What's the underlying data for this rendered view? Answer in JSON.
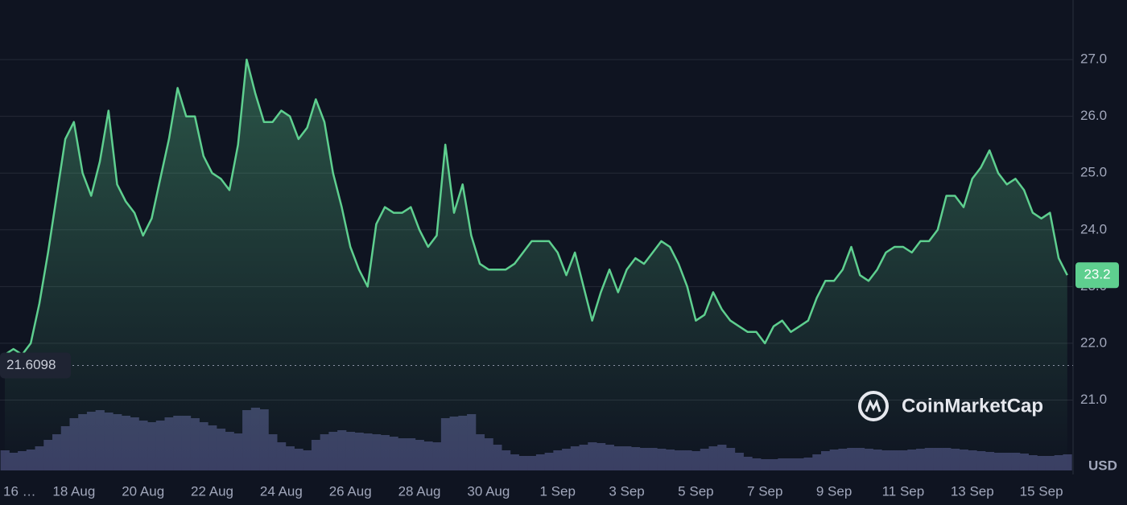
{
  "chart_data": {
    "type": "line",
    "color": "#5ecf8f",
    "volume_color": "#3a3f63",
    "categories": [
      "16 …",
      null,
      null,
      null,
      null,
      null,
      null,
      null,
      "18 Aug",
      null,
      null,
      null,
      null,
      null,
      null,
      null,
      "20 Aug",
      null,
      null,
      null,
      null,
      null,
      null,
      null,
      "22 Aug",
      null,
      null,
      null,
      null,
      null,
      null,
      null,
      "24 Aug",
      null,
      null,
      null,
      null,
      null,
      null,
      null,
      "26 Aug",
      null,
      null,
      null,
      null,
      null,
      null,
      null,
      "28 Aug",
      null,
      null,
      null,
      null,
      null,
      null,
      null,
      "30 Aug",
      null,
      null,
      null,
      null,
      null,
      null,
      null,
      "1 Sep",
      null,
      null,
      null,
      null,
      null,
      null,
      null,
      "3 Sep",
      null,
      null,
      null,
      null,
      null,
      null,
      null,
      "5 Sep",
      null,
      null,
      null,
      null,
      null,
      null,
      null,
      "7 Sep",
      null,
      null,
      null,
      null,
      null,
      null,
      null,
      "9 Sep",
      null,
      null,
      null,
      null,
      null,
      null,
      null,
      "11 Sep",
      null,
      null,
      null,
      null,
      null,
      null,
      null,
      "13 Sep",
      null,
      null,
      null,
      null,
      null,
      null,
      null,
      "15 Sep",
      null,
      null,
      null
    ],
    "values": [
      21.8,
      21.9,
      21.8,
      22.0,
      22.7,
      23.6,
      24.6,
      25.6,
      25.9,
      25.0,
      24.6,
      25.2,
      26.1,
      24.8,
      24.5,
      24.3,
      23.9,
      24.2,
      24.9,
      25.6,
      26.5,
      26.0,
      26.0,
      25.3,
      25.0,
      24.9,
      24.7,
      25.5,
      27.0,
      26.4,
      25.9,
      25.9,
      26.1,
      26.0,
      25.6,
      25.8,
      26.3,
      25.9,
      25.0,
      24.4,
      23.7,
      23.3,
      23.0,
      24.1,
      24.4,
      24.3,
      24.3,
      24.4,
      24.0,
      23.7,
      23.9,
      25.5,
      24.3,
      24.8,
      23.9,
      23.4,
      23.3,
      23.3,
      23.3,
      23.4,
      23.6,
      23.8,
      23.8,
      23.8,
      23.6,
      23.2,
      23.6,
      23.0,
      22.4,
      22.9,
      23.3,
      22.9,
      23.3,
      23.5,
      23.4,
      23.6,
      23.8,
      23.7,
      23.4,
      23.0,
      22.4,
      22.5,
      22.9,
      22.6,
      22.4,
      22.3,
      22.2,
      22.2,
      22.0,
      22.3,
      22.4,
      22.2,
      22.3,
      22.4,
      22.8,
      23.1,
      23.1,
      23.3,
      23.7,
      23.2,
      23.1,
      23.3,
      23.6,
      23.7,
      23.7,
      23.6,
      23.8,
      23.8,
      24.0,
      24.6,
      24.6,
      24.4,
      24.9,
      25.1,
      25.4,
      25.0,
      24.8,
      24.9,
      24.7,
      24.3,
      24.2,
      24.3,
      23.5,
      23.2
    ],
    "volume_values": [
      25,
      22,
      24,
      26,
      30,
      38,
      45,
      55,
      65,
      70,
      73,
      75,
      72,
      70,
      68,
      66,
      62,
      60,
      62,
      66,
      68,
      68,
      65,
      60,
      56,
      52,
      48,
      46,
      75,
      78,
      76,
      45,
      35,
      30,
      27,
      25,
      38,
      45,
      48,
      50,
      48,
      47,
      46,
      45,
      44,
      42,
      40,
      40,
      38,
      36,
      35,
      65,
      67,
      68,
      70,
      45,
      40,
      32,
      25,
      20,
      18,
      18,
      20,
      22,
      25,
      27,
      30,
      32,
      35,
      34,
      32,
      30,
      30,
      29,
      28,
      28,
      27,
      26,
      25,
      25,
      24,
      27,
      30,
      32,
      28,
      22,
      17,
      15,
      14,
      14,
      15,
      15,
      15,
      16,
      20,
      24,
      26,
      27,
      28,
      28,
      27,
      26,
      25,
      25,
      25,
      26,
      27,
      28,
      28,
      28,
      27,
      26,
      25,
      24,
      23,
      22,
      22,
      22,
      21,
      19,
      18,
      18,
      19,
      20
    ],
    "ylim": [
      19.76,
      28.05
    ],
    "yticks": [
      {
        "value": 21,
        "label": "21.0"
      },
      {
        "value": 22,
        "label": "22.0"
      },
      {
        "value": 23,
        "label": "23.0"
      },
      {
        "value": 24,
        "label": "24.0"
      },
      {
        "value": 25,
        "label": "25.0"
      },
      {
        "value": 26,
        "label": "26.0"
      },
      {
        "value": 27,
        "label": "27.0"
      }
    ],
    "grid": true,
    "reference_value": 21.6098,
    "current_price": 23.2,
    "watermark": "CoinMarketCap",
    "currency": "USD"
  }
}
